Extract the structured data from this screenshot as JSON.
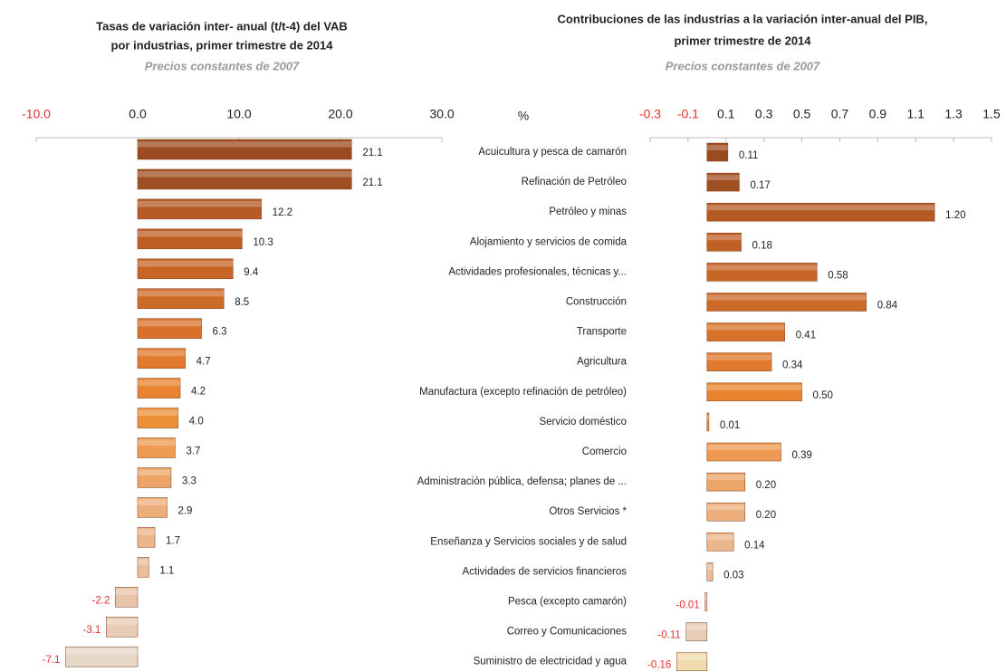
{
  "chart_data": [
    {
      "type": "barh",
      "title": [
        "Tasas de variación inter- anual (t/t-4) del VAB",
        "por industrias, primer trimestre de 2014"
      ],
      "subtitle": "Precios constantes de 2007",
      "xlim": [
        -10,
        30
      ],
      "xticks": [
        {
          "value": -10,
          "label": "-10.0"
        },
        {
          "value": 0,
          "label": "0.0"
        },
        {
          "value": 10,
          "label": "10.0"
        },
        {
          "value": 20,
          "label": "20.0"
        },
        {
          "value": 30,
          "label": "30.0"
        }
      ],
      "values": [
        21.1,
        21.1,
        12.2,
        10.3,
        9.4,
        8.5,
        6.3,
        4.7,
        4.2,
        4.0,
        3.7,
        3.3,
        2.9,
        1.7,
        1.1,
        -2.2,
        -3.1,
        -7.1
      ],
      "value_labels": [
        "21.1",
        "21.1",
        "12.2",
        "10.3",
        "9.4",
        "8.5",
        "6.3",
        "4.7",
        "4.2",
        "4.0",
        "3.7",
        "3.3",
        "2.9",
        "1.7",
        "1.1",
        "-2.2",
        "-3.1",
        "-7.1"
      ],
      "colors": [
        "#9c4a1f",
        "#a04f22",
        "#b55a24",
        "#bf5f25",
        "#c66526",
        "#cc6a28",
        "#d8722a",
        "#e07a2c",
        "#e8842f",
        "#ee9035",
        "#ee9a52",
        "#eda468",
        "#ecae7a",
        "#ebb68a",
        "#eabe9a",
        "#e8c5a8",
        "#e7cdb6",
        "#e8d8c8"
      ],
      "negative_color": "#e8302a"
    },
    {
      "type": "barh",
      "title": [
        "Contribuciones de las industrias a la variación inter-anual del PIB,",
        "primer trimestre de 2014"
      ],
      "subtitle": "Precios constantes de 2007",
      "xlabel": "%",
      "xlim": [
        -0.3,
        1.5
      ],
      "xticks": [
        -0.3,
        -0.1,
        0.1,
        0.3,
        0.5,
        0.7,
        0.9,
        1.1,
        1.3,
        1.5
      ],
      "categories": [
        "Acuicultura y pesca de camarón",
        "Refinación de Petróleo",
        "Petróleo y minas",
        "Alojamiento y servicios de comida",
        "Actividades profesionales, técnicas y...",
        "Construcción",
        "Transporte",
        "Agricultura",
        "Manufactura (excepto refinación de petróleo)",
        "Servicio doméstico",
        "Comercio",
        "Administración pública, defensa; planes de ...",
        "Otros Servicios *",
        "Enseñanza  y Servicios sociales y de salud",
        "Actividades de servicios financieros",
        "Pesca (excepto camarón)",
        "Correo y Comunicaciones",
        "Suministro de electricidad y agua"
      ],
      "values": [
        0.11,
        0.17,
        1.2,
        0.18,
        0.58,
        0.84,
        0.41,
        0.34,
        0.5,
        0.01,
        0.39,
        0.2,
        0.2,
        0.14,
        0.03,
        -0.01,
        -0.11,
        -0.16
      ],
      "value_labels": [
        "0.11",
        "0.17",
        "1.20",
        "0.18",
        "0.58",
        "0.84",
        "0.41",
        "0.34",
        "0.50",
        "0.01",
        "0.39",
        "0.20",
        "0.20",
        "0.14",
        "0.03",
        "-0.01",
        "-0.11",
        "-0.16"
      ],
      "colors": [
        "#9c4a1f",
        "#a04f22",
        "#b55a24",
        "#bf5f25",
        "#c66526",
        "#cc6a28",
        "#d8722a",
        "#e07a2c",
        "#e8842f",
        "#ee9035",
        "#ee9a52",
        "#eda468",
        "#ecae7a",
        "#ebb68a",
        "#eabe9a",
        "#e8c5a8",
        "#e7cdb6",
        "#f0dcae"
      ],
      "negative_color": "#e8302a"
    }
  ]
}
